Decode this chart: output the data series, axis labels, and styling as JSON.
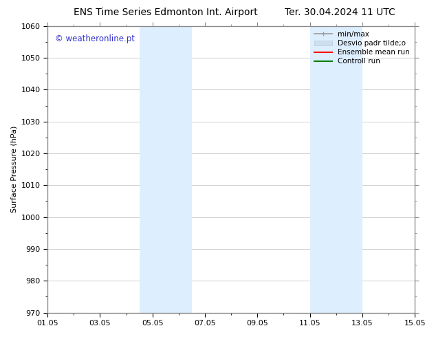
{
  "title_left": "ENS Time Series Edmonton Int. Airport",
  "title_right": "Ter. 30.04.2024 11 UTC",
  "ylabel": "Surface Pressure (hPa)",
  "xlim": [
    0,
    14
  ],
  "ylim": [
    970,
    1060
  ],
  "yticks": [
    970,
    980,
    990,
    1000,
    1010,
    1020,
    1030,
    1040,
    1050,
    1060
  ],
  "xtick_labels": [
    "01.05",
    "03.05",
    "05.05",
    "07.05",
    "09.05",
    "11.05",
    "13.05",
    "15.05"
  ],
  "xtick_positions": [
    0,
    2,
    4,
    6,
    8,
    10,
    12,
    14
  ],
  "shaded_bands": [
    {
      "x_start": 3.5,
      "x_end": 5.5
    },
    {
      "x_start": 10.0,
      "x_end": 12.0
    }
  ],
  "band_color": "#ddeeff",
  "watermark_text": "© weatheronline.pt",
  "watermark_color": "#3333cc",
  "background_color": "#ffffff",
  "grid_color": "#bbbbbb",
  "spine_color": "#888888",
  "title_fontsize": 10,
  "tick_fontsize": 8,
  "ylabel_fontsize": 8
}
